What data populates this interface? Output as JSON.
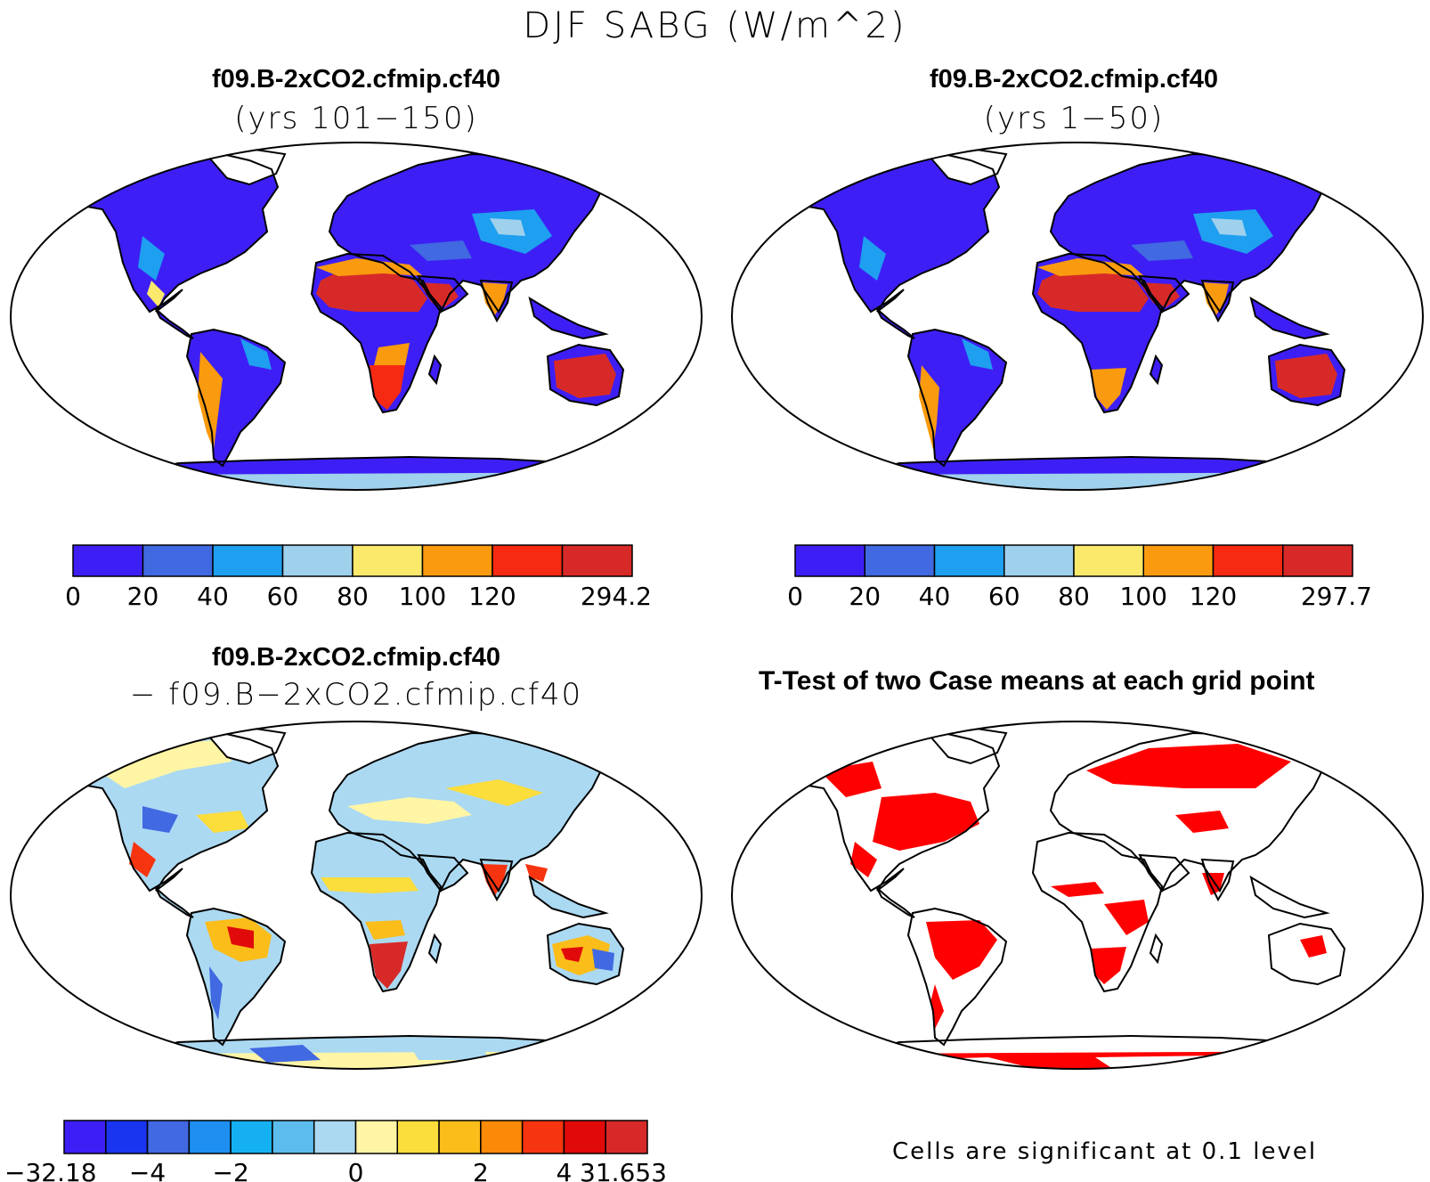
{
  "figure": {
    "title": "DJF SABG (W/m^2)"
  },
  "panels": [
    {
      "id": "top-left",
      "title": "f09.B-2xCO2.cfmip.cf40",
      "subtitle": "(yrs 101−150)",
      "colorbar": {
        "labels": [
          "0",
          "20",
          "40",
          "60",
          "80",
          "100",
          "120",
          "294.2"
        ],
        "colors": [
          "#3d1ff5",
          "#4169e1",
          "#1e9ff0",
          "#9fd0ec",
          "#fbe96c",
          "#fa9a0e",
          "#f62a12",
          "#d72a28"
        ]
      }
    },
    {
      "id": "top-right",
      "title": "f09.B-2xCO2.cfmip.cf40",
      "subtitle": "(yrs 1−50)",
      "colorbar": {
        "labels": [
          "0",
          "20",
          "40",
          "60",
          "80",
          "100",
          "120",
          "297.7"
        ],
        "colors": [
          "#3d1ff5",
          "#4169e1",
          "#1e9ff0",
          "#9fd0ec",
          "#fbe96c",
          "#fa9a0e",
          "#f62a12",
          "#d72a28"
        ]
      }
    },
    {
      "id": "bottom-left",
      "title": "f09.B-2xCO2.cfmip.cf40",
      "subtitle": "− f09.B−2xCO2.cfmip.cf40",
      "colorbar": {
        "labels": [
          "−32.18",
          "−4",
          "−2",
          "0",
          "2",
          "4",
          "31.653"
        ],
        "colors": [
          "#3d1ff5",
          "#1a35ef",
          "#4169e1",
          "#1e8ff0",
          "#15b0f2",
          "#5cbcee",
          "#abd9f2",
          "#fff5a5",
          "#fbdd3c",
          "#fbbd19",
          "#fa8a08",
          "#f6340f",
          "#e00a0a",
          "#d72a28"
        ]
      }
    },
    {
      "id": "bottom-right",
      "title": "T-Test of two Case means at each grid point",
      "note": "Cells are significant at 0.1 level"
    }
  ]
}
